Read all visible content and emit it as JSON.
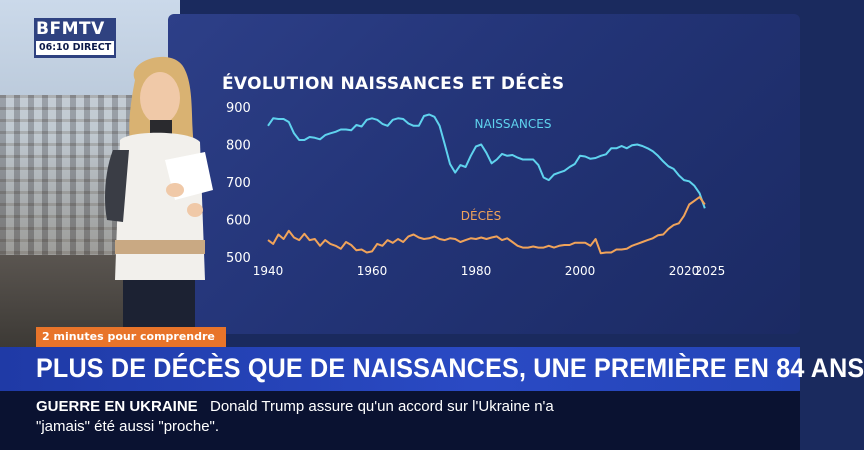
{
  "channel": {
    "logo": "BFMTV",
    "time": "06:10",
    "live_label": "DIRECT"
  },
  "segment_tag": "2 minutes pour comprendre",
  "headline": "PLUS DE DÉCÈS QUE DE NAISSANCES, UNE PREMIÈRE EN 84 ANS",
  "ticker": {
    "label": "GUERRE EN UKRAINE",
    "line1": "Donald Trump assure qu'un accord sur l'Ukraine n'a",
    "line2": "\"jamais\" été aussi \"proche\"."
  },
  "colors": {
    "births": "#5fd3ee",
    "deaths": "#f0a35a",
    "accent": "#e8742a"
  },
  "chart_data": {
    "type": "line",
    "title": "ÉVOLUTION NAISSANCES ET DÉCÈS",
    "xlabel": "",
    "ylabel": "",
    "xlim": [
      1940,
      2025
    ],
    "ylim": [
      500,
      900
    ],
    "x_ticks": [
      "1940",
      "1960",
      "1980",
      "2000",
      "2020",
      "2025"
    ],
    "y_ticks": [
      "900",
      "800",
      "700",
      "600",
      "500"
    ],
    "grid": false,
    "legend": "inline labels",
    "series": [
      {
        "name": "NAISSANCES",
        "x": [
          1940,
          1941,
          1942,
          1943,
          1944,
          1945,
          1946,
          1947,
          1948,
          1949,
          1950,
          1951,
          1952,
          1953,
          1954,
          1955,
          1956,
          1957,
          1958,
          1959,
          1960,
          1961,
          1962,
          1963,
          1964,
          1965,
          1966,
          1967,
          1968,
          1969,
          1970,
          1971,
          1972,
          1973,
          1974,
          1975,
          1976,
          1977,
          1978,
          1979,
          1980,
          1981,
          1982,
          1983,
          1984,
          1985,
          1986,
          1987,
          1988,
          1989,
          1990,
          1991,
          1992,
          1993,
          1994,
          1995,
          1996,
          1997,
          1998,
          1999,
          2000,
          2001,
          2002,
          2003,
          2004,
          2005,
          2006,
          2007,
          2008,
          2009,
          2010,
          2011,
          2012,
          2013,
          2014,
          2015,
          2016,
          2017,
          2018,
          2019,
          2020,
          2021,
          2022,
          2023,
          2024
        ],
        "values": [
          850,
          870,
          868,
          868,
          860,
          830,
          812,
          812,
          820,
          818,
          814,
          825,
          830,
          834,
          840,
          840,
          838,
          852,
          848,
          866,
          870,
          866,
          855,
          850,
          866,
          870,
          868,
          856,
          850,
          850,
          876,
          880,
          874,
          850,
          800,
          748,
          725,
          745,
          740,
          770,
          795,
          800,
          778,
          750,
          760,
          775,
          770,
          772,
          765,
          760,
          760,
          760,
          745,
          712,
          705,
          720,
          725,
          730,
          740,
          748,
          770,
          768,
          762,
          764,
          770,
          774,
          790,
          790,
          796,
          790,
          798,
          800,
          796,
          790,
          782,
          770,
          755,
          742,
          735,
          718,
          705,
          702,
          690,
          670,
          630
        ]
      },
      {
        "name": "DÉCÈS",
        "x": [
          1940,
          1941,
          1942,
          1943,
          1944,
          1945,
          1946,
          1947,
          1948,
          1949,
          1950,
          1951,
          1952,
          1953,
          1954,
          1955,
          1956,
          1957,
          1958,
          1959,
          1960,
          1961,
          1962,
          1963,
          1964,
          1965,
          1966,
          1967,
          1968,
          1969,
          1970,
          1971,
          1972,
          1973,
          1974,
          1975,
          1976,
          1977,
          1978,
          1979,
          1980,
          1981,
          1982,
          1983,
          1984,
          1985,
          1986,
          1987,
          1988,
          1989,
          1990,
          1991,
          1992,
          1993,
          1994,
          1995,
          1996,
          1997,
          1998,
          1999,
          2000,
          2001,
          2002,
          2003,
          2004,
          2005,
          2006,
          2007,
          2008,
          2009,
          2010,
          2011,
          2012,
          2013,
          2014,
          2015,
          2016,
          2017,
          2018,
          2019,
          2020,
          2021,
          2022,
          2023,
          2024
        ],
        "values": [
          545,
          535,
          560,
          548,
          570,
          552,
          545,
          562,
          545,
          548,
          530,
          545,
          535,
          530,
          522,
          540,
          532,
          518,
          520,
          512,
          515,
          535,
          530,
          545,
          538,
          548,
          540,
          555,
          560,
          552,
          548,
          550,
          555,
          548,
          545,
          550,
          548,
          540,
          545,
          550,
          548,
          552,
          548,
          552,
          555,
          545,
          550,
          540,
          530,
          525,
          525,
          528,
          525,
          525,
          530,
          525,
          530,
          532,
          532,
          538,
          538,
          538,
          530,
          548,
          510,
          512,
          512,
          520,
          520,
          522,
          530,
          535,
          540,
          545,
          550,
          558,
          560,
          575,
          585,
          590,
          610,
          640,
          650,
          660,
          640
        ]
      }
    ]
  }
}
